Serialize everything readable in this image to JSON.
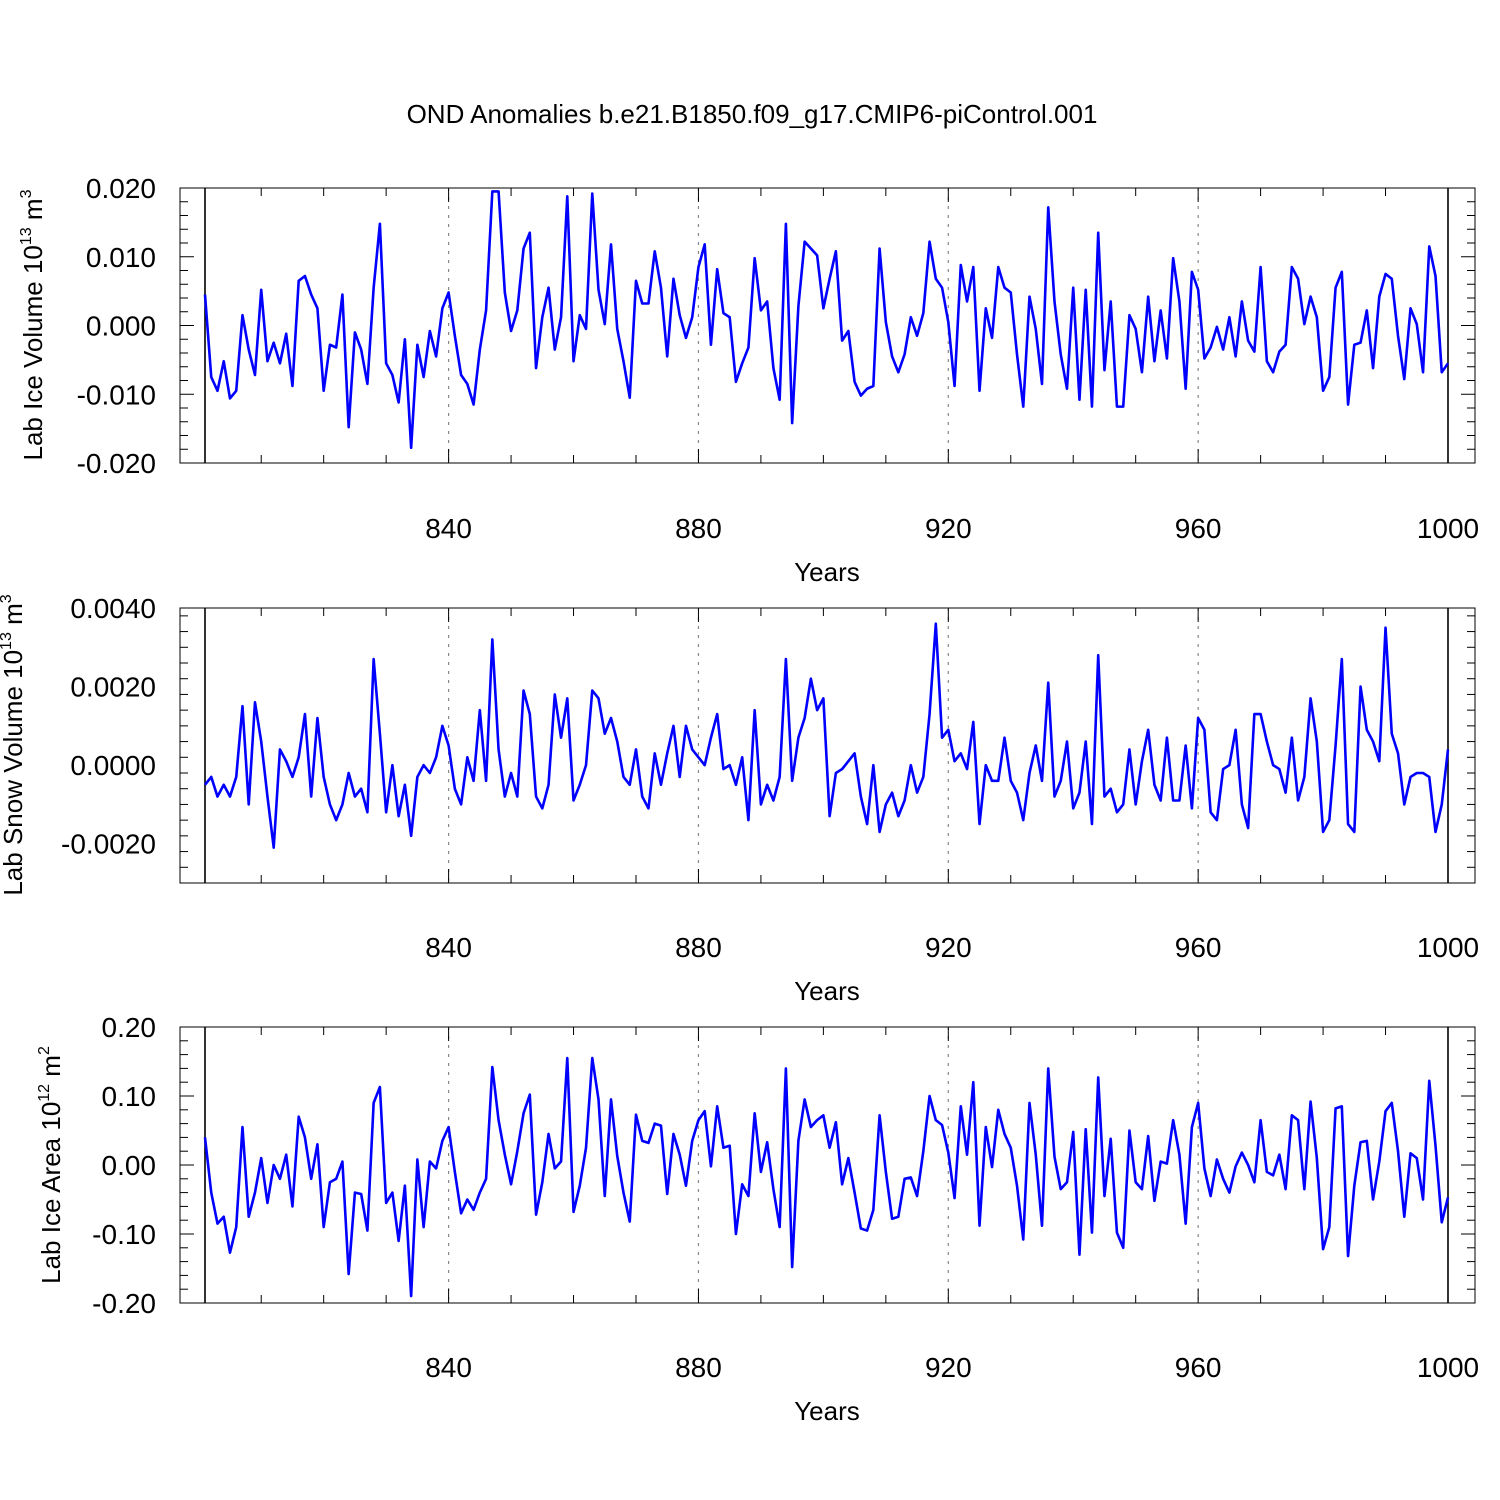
{
  "title": "OND Anomalies b.e21.B1850.f09_g17.CMIP6-piControl.001",
  "chart_data": [
    {
      "type": "line",
      "id": "ice-volume",
      "ylabel_main": "Lab Ice Volume 10",
      "ylabel_exp": "13",
      "ylabel_unit": " m",
      "ylabel_unit_exp": "3",
      "xlabel": "Years",
      "xlim": [
        801,
        1000
      ],
      "ylim": [
        -0.02,
        0.02
      ],
      "xticks": [
        840,
        880,
        920,
        960,
        1000
      ],
      "xtick_labels": [
        "840",
        "880",
        "920",
        "960",
        "1000"
      ],
      "yticks": [
        -0.02,
        -0.01,
        0.0,
        0.01,
        0.02
      ],
      "ytick_labels": [
        "-0.020",
        "-0.010",
        "0.000",
        "0.010",
        "0.020"
      ],
      "series": [
        {
          "name": "Lab Ice Volume",
          "color": "#0000ff",
          "x_start": 801,
          "values": [
            0.0045,
            -0.0075,
            -0.0095,
            -0.0052,
            -0.0106,
            -0.0095,
            0.0015,
            -0.0035,
            -0.0072,
            0.0052,
            -0.0052,
            -0.0025,
            -0.0055,
            -0.0012,
            -0.0088,
            0.0065,
            0.0072,
            0.0045,
            0.0025,
            -0.0095,
            -0.0028,
            -0.0032,
            0.0045,
            -0.0148,
            -0.001,
            -0.0035,
            -0.0085,
            0.0055,
            0.0148,
            -0.0055,
            -0.0072,
            -0.0112,
            -0.002,
            -0.0178,
            -0.0028,
            -0.0075,
            -0.0008,
            -0.0045,
            0.0025,
            0.0048,
            -0.0015,
            -0.0072,
            -0.0085,
            -0.0115,
            -0.0035,
            0.0022,
            0.0195,
            0.0195,
            0.0048,
            -0.0008,
            0.0022,
            0.0112,
            0.0135,
            -0.0062,
            0.0012,
            0.0055,
            -0.0035,
            0.0012,
            0.0188,
            -0.0052,
            0.0015,
            -0.0005,
            0.0192,
            0.0052,
            0.0002,
            0.0118,
            -0.0005,
            -0.0052,
            -0.0105,
            0.0065,
            0.0032,
            0.0032,
            0.0108,
            0.0055,
            -0.0045,
            0.0068,
            0.0015,
            -0.0018,
            0.0012,
            0.0085,
            0.0118,
            -0.0028,
            0.0082,
            0.0018,
            0.0012,
            -0.0082,
            -0.0055,
            -0.0032,
            0.0098,
            0.0022,
            0.0035,
            -0.0062,
            -0.0108,
            0.0148,
            -0.0142,
            0.0028,
            0.0122,
            0.0112,
            0.0102,
            0.0025,
            0.0068,
            0.0108,
            -0.0022,
            -0.0008,
            -0.0082,
            -0.0102,
            -0.0092,
            -0.0088,
            0.0112,
            0.0005,
            -0.0045,
            -0.0068,
            -0.0042,
            0.0012,
            -0.0015,
            0.0018,
            0.0122,
            0.0068,
            0.0055,
            0.0005,
            -0.0088,
            0.0088,
            0.0035,
            0.0085,
            -0.0095,
            0.0025,
            -0.0018,
            0.0085,
            0.0055,
            0.0048,
            -0.0042,
            -0.0118,
            0.0042,
            -0.0005,
            -0.0085,
            0.0172,
            0.0035,
            -0.0042,
            -0.0092,
            0.0055,
            -0.0108,
            0.0052,
            -0.0118,
            0.0135,
            -0.0065,
            0.0035,
            -0.0118,
            -0.0118,
            0.0015,
            -0.0005,
            -0.0068,
            0.0042,
            -0.0052,
            0.0022,
            -0.0048,
            0.0098,
            0.0035,
            -0.0092,
            0.0078,
            0.0052,
            -0.0048,
            -0.0032,
            -0.0002,
            -0.0035,
            0.0012,
            -0.0045,
            0.0035,
            -0.0022,
            -0.0038,
            0.0085,
            -0.0052,
            -0.0068,
            -0.0038,
            -0.0028,
            0.0085,
            0.0068,
            0.0002,
            0.0042,
            0.0012,
            -0.0095,
            -0.0075,
            0.0055,
            0.0078,
            -0.0115,
            -0.0028,
            -0.0025,
            0.0022,
            -0.0062,
            0.0042,
            0.0075,
            0.0068,
            -0.0015,
            -0.0078,
            0.0025,
            0.0002,
            -0.0068,
            0.0115,
            0.0072,
            -0.0068,
            -0.0055
          ]
        }
      ]
    },
    {
      "type": "line",
      "id": "snow-volume",
      "ylabel_main": "Lab Snow Volume 10",
      "ylabel_exp": "13",
      "ylabel_unit": " m",
      "ylabel_unit_exp": "3",
      "xlabel": "Years",
      "xlim": [
        801,
        1000
      ],
      "ylim": [
        -0.003,
        0.004
      ],
      "xticks": [
        840,
        880,
        920,
        960,
        1000
      ],
      "xtick_labels": [
        "840",
        "880",
        "920",
        "960",
        "1000"
      ],
      "yticks": [
        -0.002,
        0.0,
        0.002,
        0.004
      ],
      "ytick_labels": [
        "-0.0020",
        "0.0000",
        "0.0020",
        "0.0040"
      ],
      "series": [
        {
          "name": "Lab Snow Volume",
          "color": "#0000ff",
          "x_start": 801,
          "values": [
            -0.0005,
            -0.0003,
            -0.0008,
            -0.0005,
            -0.0008,
            -0.0003,
            0.0015,
            -0.001,
            0.0016,
            0.0006,
            -0.0008,
            -0.0021,
            0.0004,
            0.0001,
            -0.0003,
            0.0002,
            0.0013,
            -0.0008,
            0.0012,
            -0.0003,
            -0.001,
            -0.0014,
            -0.001,
            -0.0002,
            -0.0008,
            -0.0006,
            -0.0012,
            0.0027,
            0.0008,
            -0.0012,
            0.0,
            -0.0013,
            -0.0005,
            -0.0018,
            -0.0003,
            0.0,
            -0.0002,
            0.0002,
            0.001,
            0.0005,
            -0.0006,
            -0.001,
            0.0002,
            -0.0004,
            0.0014,
            -0.0004,
            0.0032,
            0.0004,
            -0.0008,
            -0.0002,
            -0.0008,
            0.0019,
            0.0013,
            -0.0008,
            -0.0011,
            -0.0005,
            0.0018,
            0.0007,
            0.0017,
            -0.0009,
            -0.0005,
            0.0,
            0.0019,
            0.0017,
            0.0008,
            0.0012,
            0.0006,
            -0.0003,
            -0.0005,
            0.0004,
            -0.0008,
            -0.0011,
            0.0003,
            -0.0005,
            0.0003,
            0.001,
            -0.0003,
            0.001,
            0.0004,
            0.0002,
            0.0,
            0.0007,
            0.0013,
            -0.0001,
            0.0,
            -0.0005,
            0.0002,
            -0.0014,
            0.0014,
            -0.001,
            -0.0005,
            -0.0009,
            -0.0003,
            0.0027,
            -0.0004,
            0.0007,
            0.0012,
            0.0022,
            0.0014,
            0.0017,
            -0.0013,
            -0.0002,
            -0.0001,
            0.0001,
            0.0003,
            -0.0008,
            -0.0015,
            0.0,
            -0.0017,
            -0.001,
            -0.0007,
            -0.0013,
            -0.0009,
            0.0,
            -0.0007,
            -0.0003,
            0.0013,
            0.0036,
            0.0007,
            0.0009,
            0.0001,
            0.0003,
            -0.0001,
            0.0011,
            -0.0015,
            0.0,
            -0.0004,
            -0.0004,
            0.0007,
            -0.0004,
            -0.0007,
            -0.0014,
            -0.0002,
            0.0005,
            -0.0004,
            0.0021,
            -0.0008,
            -0.0004,
            0.0006,
            -0.0011,
            -0.0007,
            0.0006,
            -0.0015,
            0.0028,
            -0.0008,
            -0.0006,
            -0.0012,
            -0.001,
            0.0004,
            -0.001,
            0.0001,
            0.0009,
            -0.0005,
            -0.0009,
            0.0007,
            -0.0009,
            -0.0009,
            0.0005,
            -0.0011,
            0.0012,
            0.0009,
            -0.0012,
            -0.0014,
            -0.0001,
            0.0,
            0.0009,
            -0.001,
            -0.0016,
            0.0013,
            0.0013,
            0.0006,
            0.0,
            -0.0001,
            -0.0007,
            0.0007,
            -0.0009,
            -0.0003,
            0.0017,
            0.0006,
            -0.0017,
            -0.0014,
            0.0005,
            0.0027,
            -0.0015,
            -0.0017,
            0.002,
            0.0009,
            0.0006,
            0.0001,
            0.0035,
            0.0008,
            0.0003,
            -0.001,
            -0.0003,
            -0.0002,
            -0.0002,
            -0.0003,
            -0.0017,
            -0.001,
            0.0004
          ]
        }
      ]
    },
    {
      "type": "line",
      "id": "ice-area",
      "ylabel_main": "Lab Ice Area 10",
      "ylabel_exp": "12",
      "ylabel_unit": " m",
      "ylabel_unit_exp": "2",
      "xlabel": "Years",
      "xlim": [
        801,
        1000
      ],
      "ylim": [
        -0.2,
        0.2
      ],
      "xticks": [
        840,
        880,
        920,
        960,
        1000
      ],
      "xtick_labels": [
        "840",
        "880",
        "920",
        "960",
        "1000"
      ],
      "yticks": [
        -0.2,
        -0.1,
        0.0,
        0.1,
        0.2
      ],
      "ytick_labels": [
        "-0.20",
        "-0.10",
        "0.00",
        "0.10",
        "0.20"
      ],
      "series": [
        {
          "name": "Lab Ice Area",
          "color": "#0000ff",
          "x_start": 801,
          "values": [
            0.04,
            -0.04,
            -0.085,
            -0.075,
            -0.127,
            -0.09,
            0.055,
            -0.075,
            -0.04,
            0.01,
            -0.055,
            0.0,
            -0.02,
            0.015,
            -0.06,
            0.07,
            0.04,
            -0.02,
            0.03,
            -0.09,
            -0.025,
            -0.02,
            0.005,
            -0.158,
            -0.04,
            -0.042,
            -0.095,
            0.09,
            0.113,
            -0.055,
            -0.04,
            -0.11,
            -0.03,
            -0.19,
            0.008,
            -0.09,
            0.005,
            -0.005,
            0.035,
            0.055,
            -0.01,
            -0.07,
            -0.05,
            -0.065,
            -0.04,
            -0.02,
            0.142,
            0.065,
            0.015,
            -0.028,
            0.02,
            0.075,
            0.102,
            -0.072,
            -0.025,
            0.045,
            -0.005,
            0.005,
            0.155,
            -0.068,
            -0.03,
            0.025,
            0.155,
            0.095,
            -0.045,
            0.095,
            0.013,
            -0.04,
            -0.082,
            0.073,
            0.035,
            0.032,
            0.06,
            0.057,
            -0.042,
            0.045,
            0.015,
            -0.03,
            0.035,
            0.065,
            0.078,
            -0.002,
            0.085,
            0.025,
            0.028,
            -0.1,
            -0.028,
            -0.045,
            0.075,
            -0.01,
            0.033,
            -0.035,
            -0.09,
            0.14,
            -0.148,
            0.035,
            0.095,
            0.055,
            0.065,
            0.072,
            0.025,
            0.062,
            -0.028,
            0.01,
            -0.04,
            -0.092,
            -0.095,
            -0.065,
            0.072,
            -0.01,
            -0.078,
            -0.075,
            -0.02,
            -0.018,
            -0.045,
            0.02,
            0.1,
            0.065,
            0.058,
            0.018,
            -0.048,
            0.085,
            0.015,
            0.12,
            -0.088,
            0.055,
            -0.003,
            0.08,
            0.045,
            0.025,
            -0.03,
            -0.108,
            0.09,
            0.015,
            -0.088,
            0.14,
            0.012,
            -0.035,
            -0.025,
            0.048,
            -0.13,
            0.052,
            -0.098,
            0.127,
            -0.045,
            0.038,
            -0.098,
            -0.12,
            0.05,
            -0.025,
            -0.035,
            0.042,
            -0.052,
            0.005,
            0.002,
            0.065,
            0.015,
            -0.085,
            0.055,
            0.09,
            -0.005,
            -0.045,
            0.008,
            -0.02,
            -0.04,
            -0.002,
            0.018,
            0.0,
            -0.025,
            0.065,
            -0.01,
            -0.015,
            0.015,
            -0.035,
            0.072,
            0.065,
            -0.035,
            0.092,
            0.01,
            -0.122,
            -0.09,
            0.082,
            0.085,
            -0.132,
            -0.03,
            0.033,
            0.035,
            -0.05,
            0.005,
            0.078,
            0.09,
            0.02,
            -0.075,
            0.017,
            0.01,
            -0.05,
            0.122,
            0.028,
            -0.083,
            -0.047
          ]
        }
      ]
    }
  ]
}
